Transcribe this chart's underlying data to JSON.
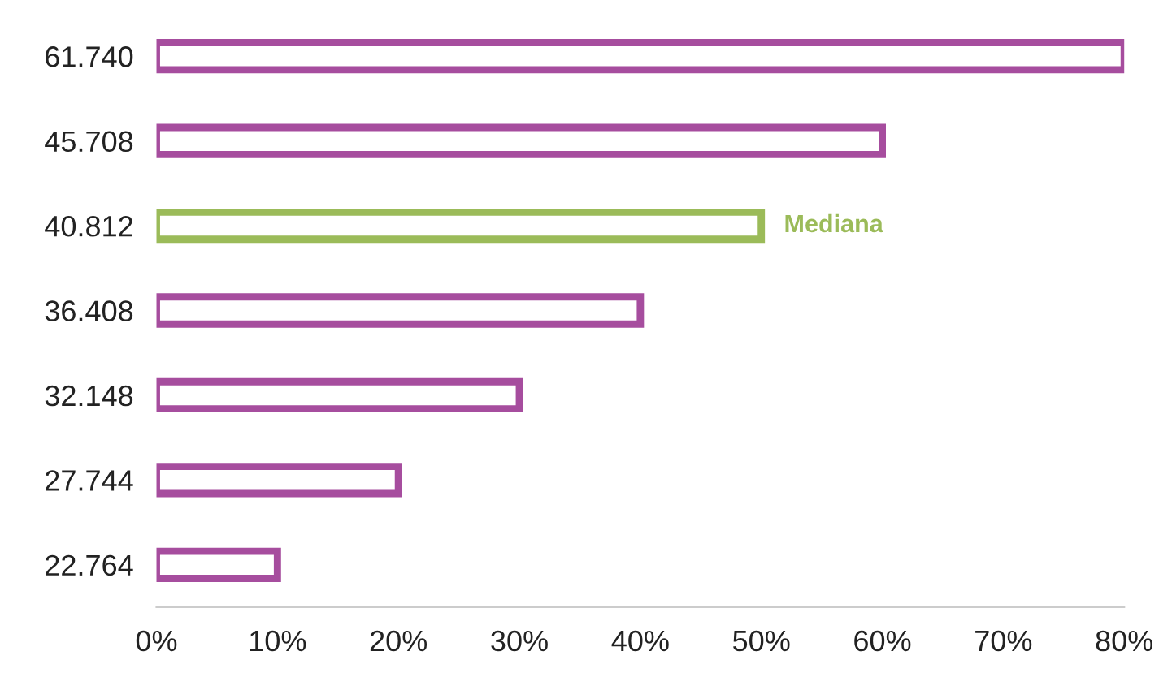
{
  "chart_data": {
    "type": "bar",
    "orientation": "horizontal",
    "categories": [
      "61.740",
      "45.708",
      "40.812",
      "36.408",
      "32.148",
      "27.744",
      "22.764"
    ],
    "values": [
      80,
      60,
      50,
      40,
      30,
      20,
      10
    ],
    "colors": [
      "#a64d9e",
      "#a64d9e",
      "#9bbb59",
      "#a64d9e",
      "#a64d9e",
      "#a64d9e",
      "#a64d9e"
    ],
    "xlim": [
      0,
      80
    ],
    "xticks": [
      {
        "value": 0,
        "label": "0%"
      },
      {
        "value": 10,
        "label": "10%"
      },
      {
        "value": 20,
        "label": "20%"
      },
      {
        "value": 30,
        "label": "30%"
      },
      {
        "value": 40,
        "label": "40%"
      },
      {
        "value": 50,
        "label": "50%"
      },
      {
        "value": 60,
        "label": "60%"
      },
      {
        "value": 70,
        "label": "70%"
      },
      {
        "value": 80,
        "label": "80%"
      }
    ],
    "annotations": [
      {
        "text": "Mediana",
        "x": 50,
        "y": "40.812"
      }
    ],
    "grid": false
  }
}
